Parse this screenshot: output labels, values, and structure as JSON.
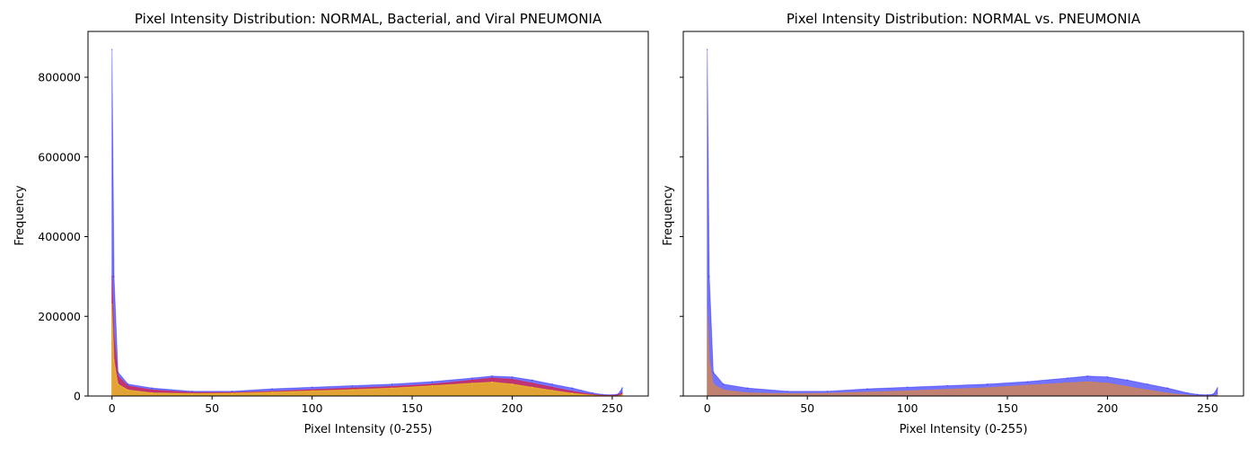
{
  "chart_data": [
    {
      "type": "area",
      "title": "Pixel Intensity Distribution: NORMAL, Bacterial, and Viral PNEUMONIA",
      "xlabel": "Pixel Intensity (0-255)",
      "ylabel": "Frequency",
      "xlim": [
        -12,
        268
      ],
      "ylim": [
        0,
        915000
      ],
      "xticks": [
        "0",
        "50",
        "100",
        "150",
        "200",
        "250"
      ],
      "yticks": [
        "0",
        "200000",
        "400000",
        "600000",
        "800000"
      ],
      "ytick_values": [
        0,
        200000,
        400000,
        600000,
        800000
      ],
      "xtick_values": [
        0,
        50,
        100,
        150,
        200,
        250
      ],
      "legend": null,
      "grid": false,
      "series": [
        {
          "color": "#0000ff",
          "description": "overlaid per-image histograms (NORMAL)",
          "x": [
            0,
            1,
            3,
            8,
            20,
            40,
            60,
            80,
            100,
            120,
            140,
            160,
            180,
            190,
            200,
            210,
            220,
            230,
            240,
            245,
            250,
            253,
            255
          ],
          "values": [
            870000,
            300000,
            60000,
            30000,
            20000,
            12000,
            12000,
            18000,
            22000,
            26000,
            30000,
            36000,
            45000,
            50000,
            48000,
            40000,
            30000,
            20000,
            8000,
            4000,
            3000,
            5000,
            20000
          ]
        },
        {
          "color": "#ff0000",
          "description": "overlaid per-image histograms (Bacterial PNEUMONIA)",
          "x": [
            0,
            1,
            3,
            8,
            20,
            40,
            60,
            80,
            100,
            120,
            140,
            160,
            180,
            190,
            200,
            210,
            220,
            230,
            240,
            245,
            250,
            253,
            255
          ],
          "values": [
            300000,
            150000,
            50000,
            25000,
            15000,
            9000,
            9000,
            12000,
            16000,
            20000,
            24000,
            30000,
            40000,
            45000,
            42000,
            32000,
            22000,
            12000,
            4000,
            2000,
            1500,
            3000,
            8000
          ]
        },
        {
          "color": "#ffff00",
          "description": "overlaid per-image histograms (Viral PNEUMONIA)",
          "x": [
            0,
            1,
            3,
            8,
            20,
            40,
            60,
            80,
            100,
            120,
            140,
            160,
            180,
            190,
            200,
            210,
            220,
            230,
            240,
            245,
            250,
            253,
            255
          ],
          "values": [
            230000,
            90000,
            30000,
            15000,
            8000,
            6000,
            7000,
            10000,
            13000,
            16000,
            20000,
            26000,
            32000,
            35000,
            30000,
            22000,
            14000,
            7000,
            2000,
            800,
            500,
            1000,
            3000
          ]
        }
      ]
    },
    {
      "type": "area",
      "title": "Pixel Intensity Distribution: NORMAL vs. PNEUMONIA",
      "xlabel": "Pixel Intensity (0-255)",
      "ylabel": "Frequency",
      "xlim": [
        -12,
        268
      ],
      "ylim": [
        0,
        915000
      ],
      "xticks": [
        "0",
        "50",
        "100",
        "150",
        "200",
        "250"
      ],
      "yticks": [],
      "ytick_values": [
        0,
        200000,
        400000,
        600000,
        800000
      ],
      "xtick_values": [
        0,
        50,
        100,
        150,
        200,
        250
      ],
      "legend": null,
      "grid": false,
      "series": [
        {
          "color": "#0000ff",
          "description": "overlaid per-image histograms (NORMAL)",
          "x": [
            0,
            1,
            3,
            8,
            20,
            40,
            60,
            80,
            100,
            120,
            140,
            160,
            180,
            190,
            200,
            210,
            220,
            230,
            240,
            245,
            250,
            253,
            255
          ],
          "values": [
            870000,
            300000,
            60000,
            30000,
            20000,
            12000,
            12000,
            18000,
            22000,
            26000,
            30000,
            36000,
            45000,
            50000,
            48000,
            40000,
            30000,
            20000,
            8000,
            4000,
            3000,
            5000,
            20000
          ]
        },
        {
          "color": "#ff8c00",
          "description": "overlaid per-image histograms (PNEUMONIA)",
          "x": [
            0,
            1,
            3,
            8,
            20,
            40,
            60,
            80,
            100,
            120,
            140,
            160,
            180,
            190,
            200,
            210,
            220,
            230,
            240,
            245,
            250,
            253,
            255
          ],
          "values": [
            220000,
            90000,
            30000,
            15000,
            8000,
            6000,
            7000,
            10000,
            13000,
            17000,
            21000,
            27000,
            33000,
            36000,
            32000,
            24000,
            15000,
            7000,
            2000,
            800,
            500,
            1000,
            3000
          ]
        }
      ]
    }
  ]
}
